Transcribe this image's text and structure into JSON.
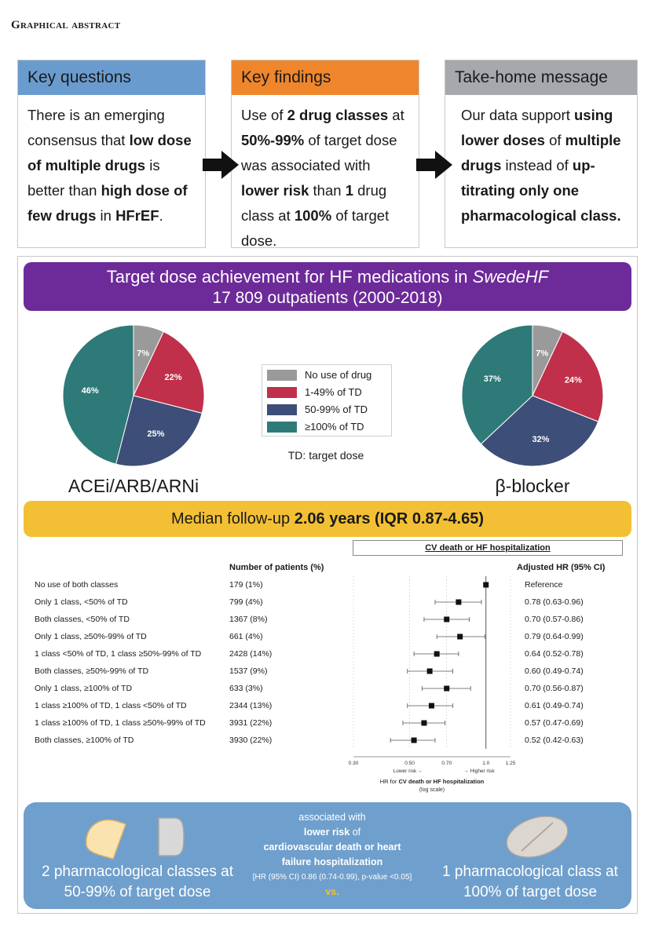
{
  "header": {
    "title": "Graphical abstract"
  },
  "cards": [
    {
      "title": "Key questions",
      "color": "#6a9bcf",
      "text_html": "There is an emerging consensus that <b>low dose of multiple drugs</b> is better than <b>high dose of few drugs</b> in <b>HFrEF</b>."
    },
    {
      "title": "Key findings",
      "color": "#f0862c",
      "text_html": "Use of <b>2 drug classes</b> at <b>50%-99%</b> of target dose was associated with <b>lower risk</b> than <b>1</b> drug class at <b>100%</b> of target dose."
    },
    {
      "title": "Take-home message",
      "color": "#a6a8ad",
      "text_html": "Our data support <b>using lower doses</b> of <b>multiple drugs</b> instead of <b>up-titrating only one pharmacological class.</b>"
    }
  ],
  "banner": {
    "title_prefix": "Target dose achievement for HF medications in ",
    "title_italic": "SwedeHF",
    "subtitle": "17 809 outpatients (2000-2018)"
  },
  "colors": {
    "no_use": "#9a9a9a",
    "low": "#c0304a",
    "mid": "#3d4f78",
    "high": "#2e7a78",
    "purple": "#6d2a99",
    "yellow": "#f3c035",
    "blue": "#6f9fcc"
  },
  "pie_legend": [
    "No use of drug",
    "1-49% of TD",
    "50-99% of TD",
    "≥100% of TD"
  ],
  "td_note": "TD: target dose",
  "pie_labels": {
    "left": "ACEi/ARB/ARNi",
    "right": "β-blocker"
  },
  "followup": {
    "prefix": "Median follow-up ",
    "bold": "2.06 years (IQR 0.87-4.65)"
  },
  "forest_headers": {
    "outcome": "CV death or HF hospitalization",
    "patients": "Number of patients (%)",
    "hr": "Adjusted HR (95% CI)"
  },
  "forest_axis": {
    "ticks": [
      "0.30",
      "0.50",
      "0.70",
      "1.0",
      "1.25"
    ],
    "lower": "Lower risk",
    "higher": "Higher risk",
    "label_prefix": "HR for ",
    "label_bold": "CV death or HF hospitalization",
    "scale_note": "(log scale)"
  },
  "forest_rows": [
    {
      "label": "No use of both classes",
      "n": "179 (1%)",
      "hr": "Reference"
    },
    {
      "label": "Only 1 class, <50% of TD",
      "n": "799 (4%)",
      "hr": "0.78 (0.63-0.96)"
    },
    {
      "label": "Both classes, <50% of TD",
      "n": "1367 (8%)",
      "hr": "0.70 (0.57-0.86)"
    },
    {
      "label": "Only 1 class, ≥50%-99% of TD",
      "n": "661 (4%)",
      "hr": "0.79 (0.64-0.99)"
    },
    {
      "label": "1 class <50% of TD, 1 class ≥50%-99% of TD",
      "n": "2428 (14%)",
      "hr": "0.64 (0.52-0.78)"
    },
    {
      "label": "Both classes, ≥50%-99% of TD",
      "n": "1537 (9%)",
      "hr": "0.60 (0.49-0.74)"
    },
    {
      "label": "Only 1 class, ≥100% of TD",
      "n": "633 (3%)",
      "hr": "0.70 (0.56-0.87)"
    },
    {
      "label": "1 class ≥100% of TD, 1 class <50% of TD",
      "n": "2344 (13%)",
      "hr": "0.61 (0.49-0.74)"
    },
    {
      "label": "1 class ≥100% of TD, 1 class ≥50%-99% of TD",
      "n": "3931 (22%)",
      "hr": "0.57 (0.47-0.69)"
    },
    {
      "label": "Both classes, ≥100% of TD",
      "n": "3930 (22%)",
      "hr": "0.52 (0.42-0.63)"
    }
  ],
  "bottom": {
    "left_text": "2 pharmacological classes at 50-99% of target dose",
    "mid_line1": "associated with",
    "mid_bold1": "lower risk",
    "mid_line2": "of",
    "mid_bold2": "cardiovascular death or heart failure hospitalization",
    "mid_hr": "[HR (95% CI) 0.86 (0.74-0.99), p-value <0.05]",
    "vs": "vs.",
    "right_text": "1 pharmacological class at 100% of target dose"
  },
  "chart_data": [
    {
      "type": "pie",
      "title": "ACEi/ARB/ARNi",
      "slices": [
        {
          "label": "No use of drug",
          "value": 7
        },
        {
          "label": "1-49% of TD",
          "value": 22
        },
        {
          "label": "50-99% of TD",
          "value": 25
        },
        {
          "label": "≥100% of TD",
          "value": 46
        }
      ]
    },
    {
      "type": "pie",
      "title": "β-blocker",
      "slices": [
        {
          "label": "No use of drug",
          "value": 7
        },
        {
          "label": "1-49% of TD",
          "value": 24
        },
        {
          "label": "50-99% of TD",
          "value": 32
        },
        {
          "label": "≥100% of TD",
          "value": 37
        }
      ]
    },
    {
      "type": "scatter",
      "title": "CV death or HF hospitalization",
      "xscale": "log",
      "xlim": [
        0.3,
        1.25
      ],
      "points": [
        {
          "hr": 1.0,
          "lo": 1.0,
          "hi": 1.0
        },
        {
          "hr": 0.78,
          "lo": 0.63,
          "hi": 0.96
        },
        {
          "hr": 0.7,
          "lo": 0.57,
          "hi": 0.86
        },
        {
          "hr": 0.79,
          "lo": 0.64,
          "hi": 0.99
        },
        {
          "hr": 0.64,
          "lo": 0.52,
          "hi": 0.78
        },
        {
          "hr": 0.6,
          "lo": 0.49,
          "hi": 0.74
        },
        {
          "hr": 0.7,
          "lo": 0.56,
          "hi": 0.87
        },
        {
          "hr": 0.61,
          "lo": 0.49,
          "hi": 0.74
        },
        {
          "hr": 0.57,
          "lo": 0.47,
          "hi": 0.69
        },
        {
          "hr": 0.52,
          "lo": 0.42,
          "hi": 0.63
        }
      ]
    }
  ]
}
